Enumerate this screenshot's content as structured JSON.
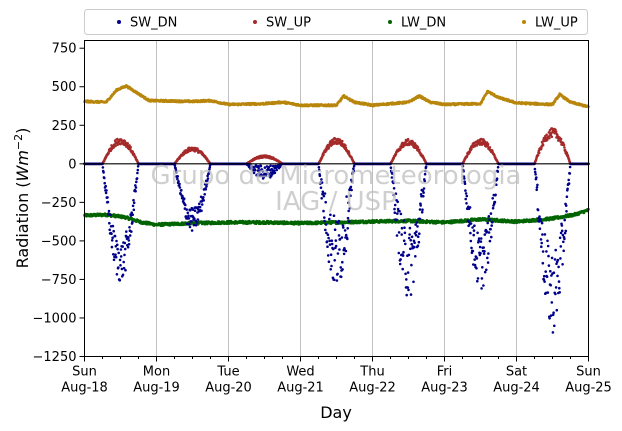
{
  "chart_data": {
    "type": "scatter",
    "xlabel": "Day",
    "ylabel_main": "Radiation (",
    "ylabel_unit": "Wm",
    "ylabel_exp": "−2",
    "ylabel_close": ")",
    "ylim": [
      -1250,
      800
    ],
    "yticks": [
      750,
      500,
      250,
      0,
      -250,
      -500,
      -750,
      -1000,
      -1250
    ],
    "ytick_labels": [
      "750",
      "500",
      "250",
      "0",
      "−250",
      "−500",
      "−750",
      "−1000",
      "−1250"
    ],
    "xlim": [
      0,
      7
    ],
    "xticks": [
      {
        "day": 0,
        "line1": "Sun",
        "line2": "Aug-18"
      },
      {
        "day": 1,
        "line1": "Mon",
        "line2": "Aug-19"
      },
      {
        "day": 2,
        "line1": "Tue",
        "line2": "Aug-20"
      },
      {
        "day": 3,
        "line1": "Wed",
        "line2": "Aug-21"
      },
      {
        "day": 4,
        "line1": "Thu",
        "line2": "Aug-22"
      },
      {
        "day": 5,
        "line1": "Fri",
        "line2": "Aug-23"
      },
      {
        "day": 6,
        "line1": "Sat",
        "line2": "Aug-24"
      },
      {
        "day": 7,
        "line1": "Sun",
        "line2": "Aug-25"
      }
    ],
    "grid": "vertical",
    "zero_line": true,
    "legend_position": "top",
    "watermark": [
      "Grupo de Micrometeorologia",
      "IAG / USP"
    ],
    "series": [
      {
        "name": "SW_DN",
        "color": "#00008b",
        "night_value": 0,
        "daily_min": [
          -770,
          -440,
          -100,
          -830,
          -880,
          -820,
          -1100
        ],
        "daily_noise": [
          0.35,
          0.35,
          0.9,
          0.6,
          0.55,
          0.45,
          0.5
        ]
      },
      {
        "name": "SW_UP",
        "color": "#a52a2a",
        "night_value": 0,
        "daily_max": [
          170,
          110,
          55,
          170,
          160,
          165,
          230
        ]
      },
      {
        "name": "LW_DN",
        "color": "#006400",
        "values": [
          [
            0,
            -335
          ],
          [
            0.3,
            -330
          ],
          [
            0.55,
            -345
          ],
          [
            0.8,
            -380
          ],
          [
            1,
            -395
          ],
          [
            1.5,
            -385
          ],
          [
            2,
            -380
          ],
          [
            2.5,
            -380
          ],
          [
            3,
            -385
          ],
          [
            3.5,
            -380
          ],
          [
            3.9,
            -375
          ],
          [
            4.5,
            -370
          ],
          [
            5,
            -380
          ],
          [
            5.5,
            -360
          ],
          [
            6,
            -375
          ],
          [
            6.5,
            -355
          ],
          [
            6.8,
            -330
          ],
          [
            7,
            -300
          ]
        ]
      },
      {
        "name": "LW_UP",
        "color": "#b8860b",
        "values": [
          [
            0,
            405
          ],
          [
            0.3,
            400
          ],
          [
            0.45,
            480
          ],
          [
            0.58,
            505
          ],
          [
            0.75,
            455
          ],
          [
            0.9,
            410
          ],
          [
            1.5,
            405
          ],
          [
            1.75,
            410
          ],
          [
            2,
            385
          ],
          [
            2.5,
            390
          ],
          [
            2.75,
            400
          ],
          [
            3,
            380
          ],
          [
            3.5,
            380
          ],
          [
            3.6,
            440
          ],
          [
            3.75,
            400
          ],
          [
            4,
            380
          ],
          [
            4.5,
            400
          ],
          [
            4.65,
            440
          ],
          [
            4.8,
            400
          ],
          [
            5,
            385
          ],
          [
            5.5,
            390
          ],
          [
            5.6,
            470
          ],
          [
            5.75,
            430
          ],
          [
            6,
            395
          ],
          [
            6.5,
            385
          ],
          [
            6.6,
            450
          ],
          [
            6.75,
            400
          ],
          [
            7,
            370
          ]
        ]
      }
    ]
  }
}
